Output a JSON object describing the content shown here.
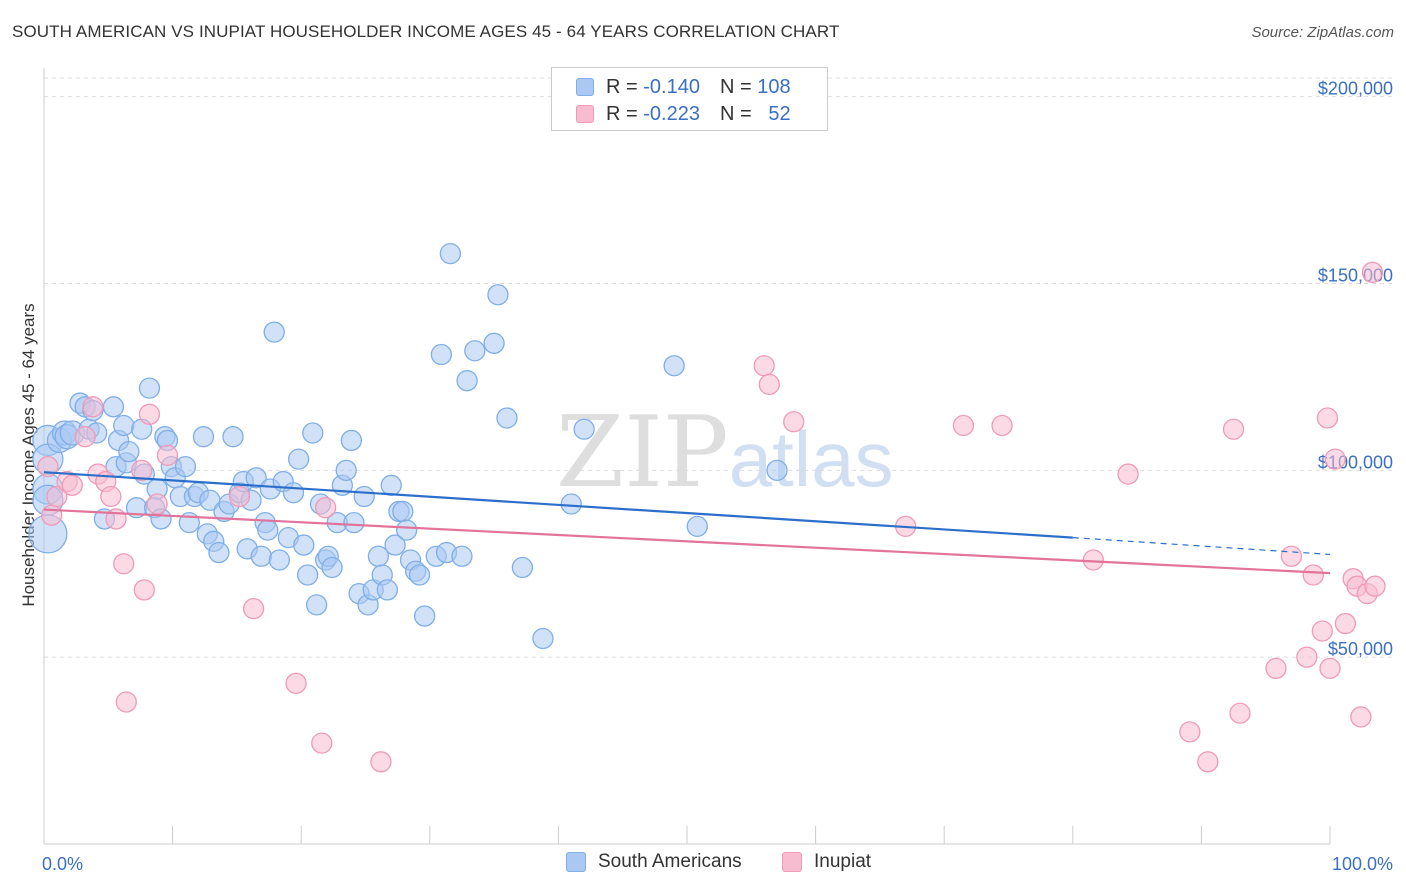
{
  "header": {
    "title": "SOUTH AMERICAN VS INUPIAT HOUSEHOLDER INCOME AGES 45 - 64 YEARS CORRELATION CHART",
    "source": "Source: ZipAtlas.com"
  },
  "watermark": {
    "zip": "ZIP",
    "atlas": "atlas"
  },
  "legend": {
    "rows": [
      {
        "r_label": "R =",
        "r_value": "-0.140",
        "n_label": "N =",
        "n_value": "108",
        "color": "#aac8f2"
      },
      {
        "r_label": "R =",
        "r_value": "-0.223",
        "n_label": "N =",
        "n_value": "52",
        "color": "#f8bcd0"
      }
    ]
  },
  "bottom_legend": {
    "south": "South Americans",
    "inupiat": "Inupiat"
  },
  "chart_data": {
    "type": "scatter",
    "ylabel": "Householder Income Ages 45 - 64 years",
    "xlim": [
      0,
      100
    ],
    "ylim": [
      0,
      205000
    ],
    "x_tick_labels": [
      "0.0%",
      "100.0%"
    ],
    "y_ticks": [
      {
        "value": 50000,
        "label": "$50,000"
      },
      {
        "value": 100000,
        "label": "$100,000"
      },
      {
        "value": 150000,
        "label": "$150,000"
      },
      {
        "value": 200000,
        "label": "$200,000"
      }
    ],
    "grid": "horizontal dashed",
    "series": [
      {
        "name": "South Americans",
        "color": "#7faee8",
        "fill": "#aac8f2",
        "line_color": "#2c6fcb",
        "trend": {
          "x0": 0,
          "y0": 99500,
          "x1": 80,
          "y1": 82000,
          "dash_to_x": 100,
          "dash_to_y": 77500
        },
        "points": [
          [
            0.3,
            108000
          ],
          [
            0.3,
            103000
          ],
          [
            0.3,
            95000
          ],
          [
            0.3,
            92000
          ],
          [
            0.3,
            83000
          ],
          [
            1.2,
            108000
          ],
          [
            1.6,
            110000
          ],
          [
            1.8,
            109000
          ],
          [
            2.2,
            110000
          ],
          [
            2.8,
            118000
          ],
          [
            3.2,
            117000
          ],
          [
            3.5,
            111000
          ],
          [
            3.8,
            116000
          ],
          [
            4.1,
            110000
          ],
          [
            4.7,
            87000
          ],
          [
            5.4,
            117000
          ],
          [
            5.6,
            101000
          ],
          [
            5.8,
            108000
          ],
          [
            6.2,
            112000
          ],
          [
            6.4,
            102000
          ],
          [
            6.6,
            105000
          ],
          [
            7.2,
            90000
          ],
          [
            7.6,
            111000
          ],
          [
            7.8,
            99000
          ],
          [
            8.2,
            122000
          ],
          [
            8.6,
            90000
          ],
          [
            8.8,
            95000
          ],
          [
            9.1,
            87000
          ],
          [
            9.4,
            109000
          ],
          [
            9.6,
            108000
          ],
          [
            9.9,
            101000
          ],
          [
            10.2,
            98000
          ],
          [
            10.6,
            93000
          ],
          [
            11.0,
            101000
          ],
          [
            11.3,
            86000
          ],
          [
            11.7,
            93000
          ],
          [
            12.0,
            94000
          ],
          [
            12.4,
            109000
          ],
          [
            12.7,
            83000
          ],
          [
            12.9,
            92000
          ],
          [
            13.2,
            81000
          ],
          [
            13.6,
            78000
          ],
          [
            14.0,
            89000
          ],
          [
            14.4,
            91000
          ],
          [
            14.7,
            109000
          ],
          [
            15.2,
            94000
          ],
          [
            15.5,
            97000
          ],
          [
            15.8,
            79000
          ],
          [
            16.1,
            92000
          ],
          [
            16.5,
            98000
          ],
          [
            16.9,
            77000
          ],
          [
            17.2,
            86000
          ],
          [
            17.4,
            84000
          ],
          [
            17.6,
            95000
          ],
          [
            17.9,
            137000
          ],
          [
            18.3,
            76000
          ],
          [
            18.6,
            97000
          ],
          [
            19.0,
            82000
          ],
          [
            19.4,
            94000
          ],
          [
            19.8,
            103000
          ],
          [
            20.2,
            80000
          ],
          [
            20.5,
            72000
          ],
          [
            20.9,
            110000
          ],
          [
            21.2,
            64000
          ],
          [
            21.5,
            91000
          ],
          [
            21.9,
            76000
          ],
          [
            22.1,
            77000
          ],
          [
            22.4,
            74000
          ],
          [
            22.8,
            86000
          ],
          [
            23.2,
            96000
          ],
          [
            23.5,
            100000
          ],
          [
            23.9,
            108000
          ],
          [
            24.1,
            86000
          ],
          [
            24.5,
            67000
          ],
          [
            24.9,
            93000
          ],
          [
            25.2,
            64000
          ],
          [
            25.6,
            68000
          ],
          [
            26.0,
            77000
          ],
          [
            26.3,
            72000
          ],
          [
            26.7,
            68000
          ],
          [
            27.0,
            96000
          ],
          [
            27.3,
            80000
          ],
          [
            27.6,
            89000
          ],
          [
            27.9,
            89000
          ],
          [
            28.2,
            84000
          ],
          [
            28.5,
            76000
          ],
          [
            28.9,
            73000
          ],
          [
            29.2,
            72000
          ],
          [
            29.6,
            61000
          ],
          [
            30.5,
            77000
          ],
          [
            30.9,
            131000
          ],
          [
            31.3,
            78000
          ],
          [
            31.6,
            158000
          ],
          [
            32.5,
            77000
          ],
          [
            32.9,
            124000
          ],
          [
            33.5,
            132000
          ],
          [
            35.0,
            134000
          ],
          [
            35.3,
            147000
          ],
          [
            36.0,
            114000
          ],
          [
            37.2,
            74000
          ],
          [
            38.8,
            55000
          ],
          [
            41.0,
            91000
          ],
          [
            42.0,
            111000
          ],
          [
            49.0,
            128000
          ],
          [
            50.8,
            85000
          ],
          [
            57.0,
            100000
          ]
        ],
        "radii_note": "points near 0% are larger"
      },
      {
        "name": "Inupiat",
        "color": "#f09ab8",
        "fill": "#f8bcd0",
        "line_color": "#e2739a",
        "trend": {
          "x0": 0,
          "y0": 89500,
          "x1": 100,
          "y1": 72500
        },
        "points": [
          [
            0.3,
            101000
          ],
          [
            0.6,
            88000
          ],
          [
            1.0,
            93000
          ],
          [
            1.8,
            97000
          ],
          [
            2.2,
            96000
          ],
          [
            3.2,
            109000
          ],
          [
            3.8,
            117000
          ],
          [
            4.2,
            99000
          ],
          [
            4.8,
            97000
          ],
          [
            5.2,
            93000
          ],
          [
            5.6,
            87000
          ],
          [
            6.2,
            75000
          ],
          [
            6.4,
            38000
          ],
          [
            7.6,
            100000
          ],
          [
            7.8,
            68000
          ],
          [
            8.2,
            115000
          ],
          [
            8.8,
            91000
          ],
          [
            9.6,
            104000
          ],
          [
            15.2,
            93000
          ],
          [
            16.3,
            63000
          ],
          [
            19.6,
            43000
          ],
          [
            21.6,
            27000
          ],
          [
            21.9,
            90000
          ],
          [
            26.2,
            22000
          ],
          [
            56.0,
            128000
          ],
          [
            56.4,
            123000
          ],
          [
            58.3,
            113000
          ],
          [
            67.0,
            85000
          ],
          [
            71.5,
            112000
          ],
          [
            74.5,
            112000
          ],
          [
            81.6,
            76000
          ],
          [
            84.3,
            99000
          ],
          [
            89.1,
            30000
          ],
          [
            90.5,
            22000
          ],
          [
            92.5,
            111000
          ],
          [
            93.0,
            35000
          ],
          [
            95.8,
            47000
          ],
          [
            97.0,
            77000
          ],
          [
            98.2,
            50000
          ],
          [
            98.7,
            72000
          ],
          [
            99.4,
            57000
          ],
          [
            99.8,
            114000
          ],
          [
            100.0,
            47000
          ],
          [
            100.4,
            103000
          ],
          [
            101.2,
            59000
          ],
          [
            101.8,
            71000
          ],
          [
            102.1,
            69000
          ],
          [
            102.4,
            34000
          ],
          [
            102.9,
            67000
          ],
          [
            103.3,
            153000
          ],
          [
            103.5,
            69000
          ]
        ]
      }
    ]
  }
}
